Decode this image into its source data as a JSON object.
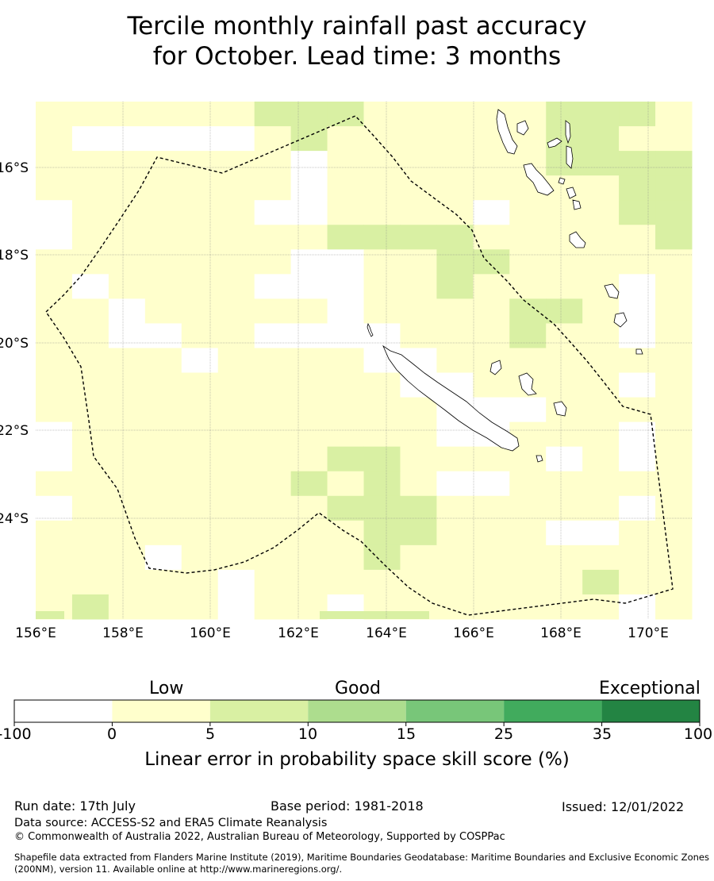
{
  "title_line1": "Tercile monthly rainfall past accuracy",
  "title_line2": "for October. Lead time: 3 months",
  "map": {
    "lon_ticks": [
      "156°E",
      "158°E",
      "160°E",
      "162°E",
      "164°E",
      "166°E",
      "168°E",
      "170°E"
    ],
    "lat_ticks": [
      "16°S",
      "18°S",
      "20°S",
      "22°S",
      "24°S"
    ],
    "colors": {
      "white": "#ffffff",
      "pale_yellow": "#ffffcc",
      "light_green": "#d9f0a3",
      "green2": "#addd8e",
      "green3": "#78c679",
      "green4": "#41ab5d",
      "green5": "#238443",
      "eez_line": "#000000"
    }
  },
  "colorbar": {
    "category_labels": [
      "Low",
      "Good",
      "Exceptional"
    ],
    "ticks": [
      "-100",
      "0",
      "5",
      "10",
      "15",
      "25",
      "35",
      "100"
    ],
    "colors": [
      "#ffffff",
      "#ffffcc",
      "#d9f0a3",
      "#addd8e",
      "#78c679",
      "#41ab5d",
      "#238443"
    ],
    "title": "Linear error in probability space skill score (%)"
  },
  "footer": {
    "run_date": "Run date: 17th July",
    "base_period": "Base period: 1981-2018",
    "issued": "Issued: 12/01/2022",
    "data_source": "Data source: ACCESS-S2 and ERA5 Climate Reanalysis",
    "copyright": "© Commonwealth of Australia 2022, Australian Bureau of Meteorology, Supported by COSPPac",
    "shapefile": "Shapefile data extracted from Flanders Marine Institute (2019), Maritime Boundaries Geodatabase: Maritime Boundaries and Exclusive Economic Zones (200NM), version 11. Available online at http://www.marineregions.org/."
  }
}
